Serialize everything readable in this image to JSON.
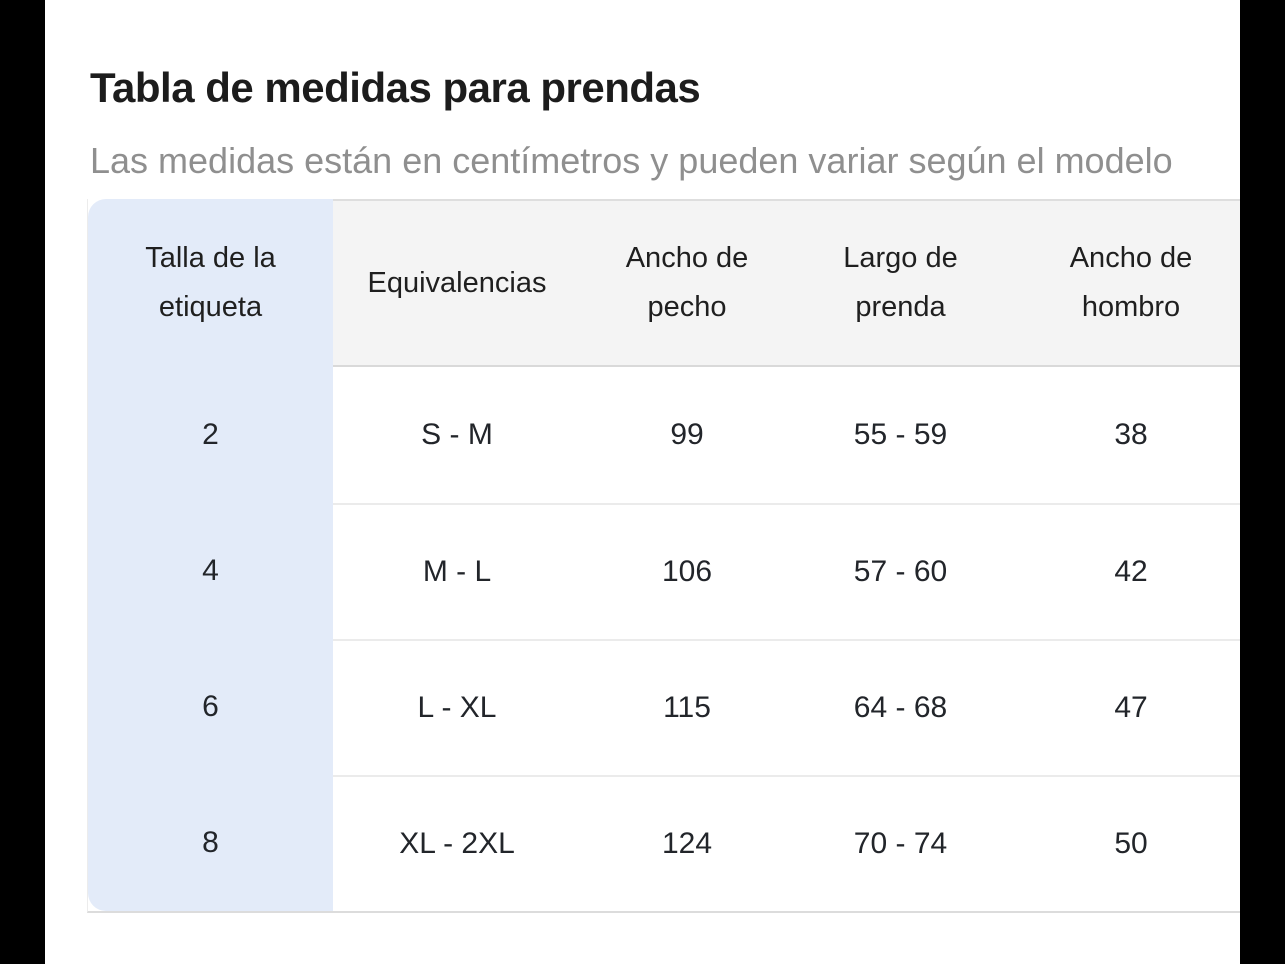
{
  "panel": {
    "title": "Tabla de medidas para prendas",
    "subtitle": "Las medidas están en centímetros y pueden variar según el modelo"
  },
  "size_table": {
    "columns": [
      "Talla de la\netiqueta",
      "Equivalencias",
      "Ancho de\npecho",
      "Largo de\nprenda",
      "Ancho de\nhombro"
    ],
    "rows": [
      [
        "2",
        "S - M",
        "99",
        "55 - 59",
        "38"
      ],
      [
        "4",
        "M - L",
        "106",
        "57 - 60",
        "42"
      ],
      [
        "6",
        "L - XL",
        "115",
        "64 - 68",
        "47"
      ],
      [
        "8",
        "XL - 2XL",
        "124",
        "70 - 74",
        "50"
      ]
    ]
  },
  "colors": {
    "highlight_column_bg": "#e3ebf9",
    "header_bg": "#f4f4f4",
    "title_text": "#1c1c1c",
    "subtitle_text": "#8f8f8f",
    "cell_text": "#22252a",
    "edge_bars": "#000000"
  }
}
